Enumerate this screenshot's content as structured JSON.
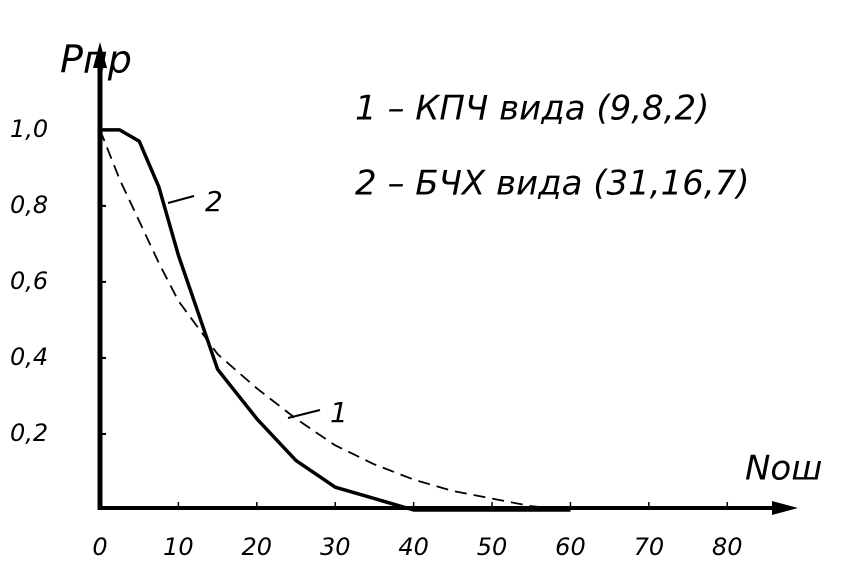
{
  "chart_data": {
    "type": "line",
    "ylabel": "Pпр",
    "xlabel": "Nош",
    "annotations": [
      "1 – КПЧ вида (9,8,2)",
      "2 – БЧХ вида (31,16,7)"
    ],
    "x": [
      0,
      2.5,
      5,
      7.5,
      10,
      15,
      20,
      25,
      30,
      35,
      40,
      45,
      50,
      55,
      60
    ],
    "series": [
      {
        "name": "1",
        "color": "#000000",
        "dashed": true,
        "values": [
          1.0,
          0.87,
          0.76,
          0.65,
          0.55,
          0.41,
          0.32,
          0.24,
          0.17,
          0.12,
          0.08,
          0.05,
          0.03,
          0.01,
          0
        ]
      },
      {
        "name": "2",
        "color": "#000000",
        "dashed": false,
        "values": [
          1.0,
          1.0,
          0.97,
          0.85,
          0.67,
          0.37,
          0.24,
          0.13,
          0.06,
          0.03,
          0.0,
          0,
          0,
          0,
          0
        ]
      }
    ],
    "xlim": [
      0,
      88
    ],
    "ylim": [
      0,
      1.21
    ],
    "xticks": [
      0,
      10,
      20,
      30,
      40,
      50,
      60,
      70,
      80
    ],
    "yticks": [
      {
        "value": 0.2,
        "label": "0,2"
      },
      {
        "value": 0.4,
        "label": "0,4"
      },
      {
        "value": 0.6,
        "label": "0,6"
      },
      {
        "value": 0.8,
        "label": "0,8"
      },
      {
        "value": 1.0,
        "label": "1,0"
      }
    ],
    "grid": false
  }
}
